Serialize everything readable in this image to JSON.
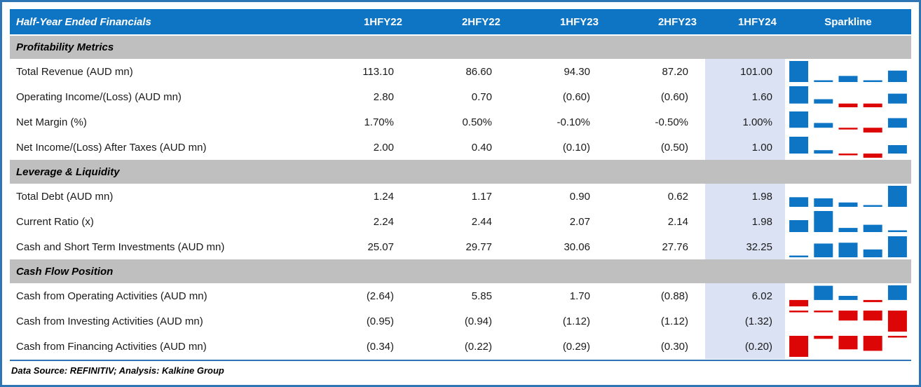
{
  "colors": {
    "header_bg": "#0e74c4",
    "section_bg": "#bfbfbf",
    "highlight_column_bg": "#dbe2f3",
    "outer_border": "#2e75b6",
    "sparkline_positive": "#0e74c4",
    "sparkline_negative": "#dd0606"
  },
  "chart_data": {
    "type": "table",
    "title": "Half-Year Ended Financials",
    "columns": [
      "1HFY22",
      "2HFY22",
      "1HFY23",
      "2HFY23",
      "1HFY24"
    ],
    "sparkline_column": "Sparkline",
    "highlighted_column": "1HFY24",
    "sparkline_colors": {
      "positive": "#0e74c4",
      "negative": "#dd0606"
    },
    "sections": [
      {
        "heading": "Profitability Metrics",
        "rows": [
          {
            "label": "Total Revenue (AUD mn)",
            "values": [
              "113.10",
              "86.60",
              "94.30",
              "87.20",
              "101.00"
            ],
            "sparkline": [
              113.1,
              86.6,
              94.3,
              87.2,
              101.0
            ]
          },
          {
            "label": "Operating Income/(Loss) (AUD mn)",
            "values": [
              "2.80",
              "0.70",
              "(0.60)",
              "(0.60)",
              "1.60"
            ],
            "sparkline": [
              2.8,
              0.7,
              -0.6,
              -0.6,
              1.6
            ]
          },
          {
            "label": "Net Margin (%)",
            "values": [
              "1.70%",
              "0.50%",
              "-0.10%",
              "-0.50%",
              "1.00%"
            ],
            "sparkline": [
              1.7,
              0.5,
              -0.1,
              -0.5,
              1.0
            ]
          },
          {
            "label": "Net Income/(Loss) After Taxes (AUD mn)",
            "values": [
              "2.00",
              "0.40",
              "(0.10)",
              "(0.50)",
              "1.00"
            ],
            "sparkline": [
              2.0,
              0.4,
              -0.1,
              -0.5,
              1.0
            ]
          }
        ]
      },
      {
        "heading": "Leverage & Liquidity",
        "rows": [
          {
            "label": "Total Debt (AUD mn)",
            "values": [
              "1.24",
              "1.17",
              "0.90",
              "0.62",
              "1.98"
            ],
            "sparkline": [
              1.24,
              1.17,
              0.9,
              0.62,
              1.98
            ]
          },
          {
            "label": "Current Ratio (x)",
            "values": [
              "2.24",
              "2.44",
              "2.07",
              "2.14",
              "1.98"
            ],
            "sparkline": [
              2.24,
              2.44,
              2.07,
              2.14,
              1.98
            ]
          },
          {
            "label": "Cash and Short Term Investments (AUD mn)",
            "values": [
              "25.07",
              "29.77",
              "30.06",
              "27.76",
              "32.25"
            ],
            "sparkline": [
              25.07,
              29.77,
              30.06,
              27.76,
              32.25
            ]
          }
        ]
      },
      {
        "heading": "Cash Flow Position",
        "rows": [
          {
            "label": "Cash from Operating Activities (AUD mn)",
            "values": [
              "(2.64)",
              "5.85",
              "1.70",
              "(0.88)",
              "6.02"
            ],
            "sparkline": [
              -2.64,
              5.85,
              1.7,
              -0.88,
              6.02
            ]
          },
          {
            "label": "Cash from Investing Activities (AUD mn)",
            "values": [
              "(0.95)",
              "(0.94)",
              "(1.12)",
              "(1.12)",
              "(1.32)"
            ],
            "sparkline": [
              -0.95,
              -0.94,
              -1.12,
              -1.12,
              -1.32
            ]
          },
          {
            "label": "Cash from Financing Activities (AUD mn)",
            "values": [
              "(0.34)",
              "(0.22)",
              "(0.29)",
              "(0.30)",
              "(0.20)"
            ],
            "sparkline": [
              -0.34,
              -0.22,
              -0.29,
              -0.3,
              -0.2
            ]
          }
        ]
      }
    ],
    "footer": "Data Source: REFINITIV; Analysis: Kalkine Group"
  }
}
